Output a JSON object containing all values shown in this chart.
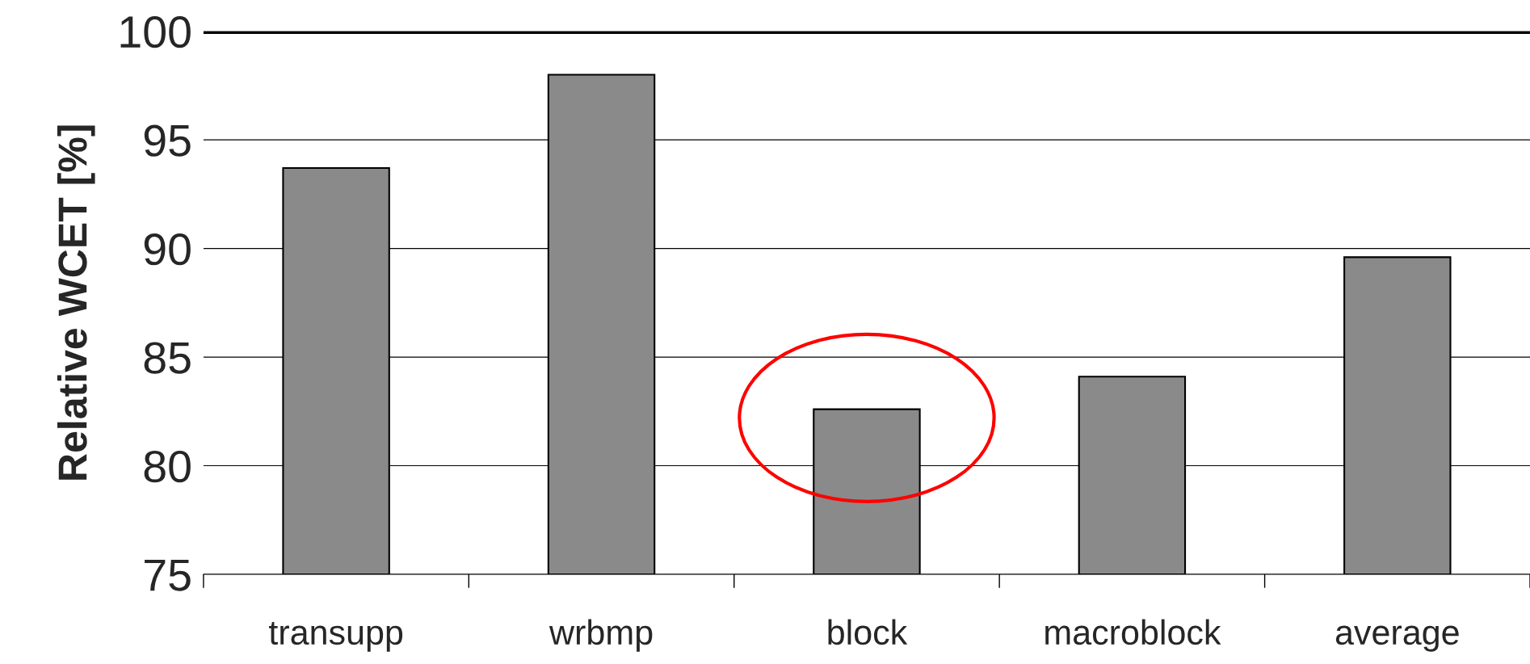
{
  "chart_data": {
    "type": "bar",
    "ylabel": "Relative WCET [%]",
    "categories": [
      "transupp",
      "wrbmp",
      "block",
      "macroblock",
      "average"
    ],
    "values": [
      93.7,
      98.0,
      82.6,
      84.1,
      89.6
    ],
    "color": "#8a8a8a",
    "ylim": [
      75,
      100
    ],
    "yticks": [
      75,
      80,
      85,
      90,
      95,
      100
    ],
    "grid": "y",
    "ref_lines": [
      {
        "axis": "y",
        "value": 100,
        "color": "#000000"
      }
    ]
  }
}
